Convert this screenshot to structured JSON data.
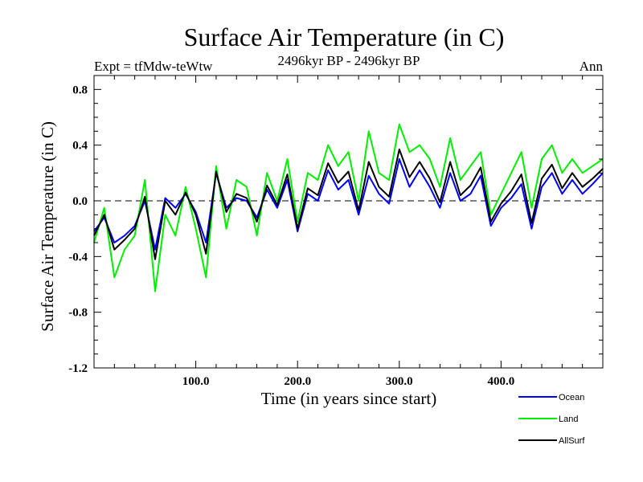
{
  "chart_data": {
    "type": "line",
    "title": "Surface Air Temperature (in C)",
    "subtitle": "2496kyr BP - 2496kyr BP",
    "left_label": "Expt = tfMdw-teWtw",
    "right_label": "Ann",
    "xlabel": "Time (in years since start)",
    "ylabel": "Surface Air Temperature (in C)",
    "xlim": [
      0,
      500
    ],
    "ylim": [
      -1.2,
      0.9
    ],
    "x_ticks": [
      100,
      200,
      300,
      400
    ],
    "x_tick_labels": [
      "100.0",
      "200.0",
      "300.0",
      "400.0"
    ],
    "y_ticks": [
      -1.2,
      -0.8,
      -0.4,
      0.0,
      0.4,
      0.8
    ],
    "y_tick_labels": [
      "-1.2",
      "-0.8",
      "-0.4",
      "0.0",
      "0.4",
      "0.8"
    ],
    "zero_line": true,
    "legend_position": "bottom-right",
    "series": [
      {
        "name": "Ocean",
        "color": "#0000ff",
        "x": [
          0,
          10,
          20,
          30,
          40,
          50,
          60,
          70,
          80,
          90,
          100,
          110,
          120,
          130,
          140,
          150,
          160,
          170,
          180,
          190,
          200,
          210,
          220,
          230,
          240,
          250,
          260,
          270,
          280,
          290,
          300,
          310,
          320,
          330,
          340,
          350,
          360,
          370,
          380,
          390,
          400,
          410,
          420,
          430,
          440,
          450,
          460,
          470,
          480,
          490,
          500
        ],
        "values": [
          -0.22,
          -0.12,
          -0.3,
          -0.25,
          -0.18,
          0.0,
          -0.35,
          0.02,
          -0.05,
          0.05,
          -0.08,
          -0.3,
          0.2,
          -0.05,
          0.02,
          0.0,
          -0.12,
          0.08,
          -0.05,
          0.15,
          -0.22,
          0.05,
          0.0,
          0.22,
          0.08,
          0.15,
          -0.1,
          0.18,
          0.05,
          -0.02,
          0.3,
          0.1,
          0.22,
          0.1,
          -0.05,
          0.2,
          0.0,
          0.05,
          0.18,
          -0.18,
          -0.05,
          0.02,
          0.12,
          -0.2,
          0.1,
          0.2,
          0.05,
          0.15,
          0.05,
          0.12,
          0.2
        ]
      },
      {
        "name": "Land",
        "color": "#00ee00",
        "x": [
          0,
          10,
          20,
          30,
          40,
          50,
          60,
          70,
          80,
          90,
          100,
          110,
          120,
          130,
          140,
          150,
          160,
          170,
          180,
          190,
          200,
          210,
          220,
          230,
          240,
          250,
          260,
          270,
          280,
          290,
          300,
          310,
          320,
          330,
          340,
          350,
          360,
          370,
          380,
          390,
          400,
          410,
          420,
          430,
          440,
          450,
          460,
          470,
          480,
          490,
          500
        ],
        "values": [
          -0.3,
          -0.05,
          -0.55,
          -0.35,
          -0.25,
          0.15,
          -0.65,
          -0.1,
          -0.25,
          0.1,
          -0.2,
          -0.55,
          0.25,
          -0.2,
          0.15,
          0.1,
          -0.25,
          0.2,
          0.0,
          0.3,
          -0.15,
          0.2,
          0.15,
          0.4,
          0.25,
          0.35,
          0.0,
          0.5,
          0.2,
          0.15,
          0.55,
          0.35,
          0.4,
          0.3,
          0.1,
          0.45,
          0.15,
          0.25,
          0.35,
          -0.1,
          0.05,
          0.2,
          0.35,
          -0.05,
          0.3,
          0.4,
          0.2,
          0.3,
          0.2,
          0.25,
          0.3
        ]
      },
      {
        "name": "AllSurf",
        "color": "#000000",
        "x": [
          0,
          10,
          20,
          30,
          40,
          50,
          60,
          70,
          80,
          90,
          100,
          110,
          120,
          130,
          140,
          150,
          160,
          170,
          180,
          190,
          200,
          210,
          220,
          230,
          240,
          250,
          260,
          270,
          280,
          290,
          300,
          310,
          320,
          330,
          340,
          350,
          360,
          370,
          380,
          390,
          400,
          410,
          420,
          430,
          440,
          450,
          460,
          470,
          480,
          490,
          500
        ],
        "values": [
          -0.25,
          -0.1,
          -0.35,
          -0.28,
          -0.2,
          0.03,
          -0.42,
          0.0,
          -0.1,
          0.06,
          -0.1,
          -0.38,
          0.21,
          -0.08,
          0.05,
          0.02,
          -0.15,
          0.11,
          -0.03,
          0.19,
          -0.2,
          0.09,
          0.04,
          0.27,
          0.13,
          0.21,
          -0.07,
          0.28,
          0.1,
          0.03,
          0.37,
          0.17,
          0.28,
          0.16,
          -0.01,
          0.28,
          0.04,
          0.11,
          0.24,
          -0.15,
          -0.02,
          0.07,
          0.19,
          -0.16,
          0.16,
          0.26,
          0.09,
          0.2,
          0.1,
          0.16,
          0.23
        ]
      }
    ]
  }
}
